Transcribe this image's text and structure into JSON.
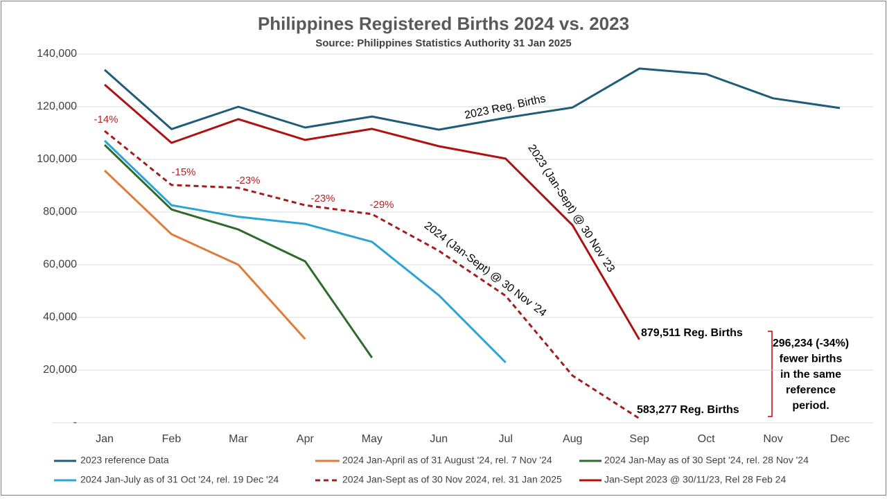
{
  "chart_data": {
    "type": "line",
    "title": "Philippines Registered Births 2024 vs. 2023",
    "subtitle": "Source: Philippines Statistics Authority 31 Jan 2025",
    "categories": [
      "Jan",
      "Feb",
      "Mar",
      "Apr",
      "May",
      "Jun",
      "Jul",
      "Aug",
      "Sep",
      "Oct",
      "Nov",
      "Dec"
    ],
    "ylim": [
      0,
      140000
    ],
    "yticks": [
      {
        "value": 0,
        "label": "-"
      },
      {
        "value": 20000,
        "label": "20,000"
      },
      {
        "value": 40000,
        "label": "40,000"
      },
      {
        "value": 60000,
        "label": "60,000"
      },
      {
        "value": 80000,
        "label": "80,000"
      },
      {
        "value": 100000,
        "label": "100,000"
      },
      {
        "value": 120000,
        "label": "120,000"
      },
      {
        "value": 140000,
        "label": "140,000"
      }
    ],
    "grid": true,
    "series": [
      {
        "name": "2023 reference Data",
        "color": "#1f5c7a",
        "dashed": false,
        "values": [
          134000,
          111500,
          120000,
          112100,
          116300,
          111300,
          115800,
          119700,
          134500,
          132400,
          123200,
          119500
        ]
      },
      {
        "name": "2024 Jan-April as of 31 August '24, rel. 7 Nov '24",
        "color": "#e07b39",
        "dashed": false,
        "values": [
          95800,
          71600,
          60000,
          31800,
          null,
          null,
          null,
          null,
          null,
          null,
          null,
          null
        ]
      },
      {
        "name": "2024 Jan-May as of 30 Sept '24, rel. 28 Nov '24",
        "color": "#2e6b2a",
        "dashed": false,
        "values": [
          105500,
          81000,
          73400,
          61300,
          24700,
          null,
          null,
          null,
          null,
          null,
          null,
          null
        ]
      },
      {
        "name": "2024 Jan-July as of 31 Oct '24, rel. 19 Dec '24",
        "color": "#2aa3d6",
        "dashed": false,
        "values": [
          107100,
          82600,
          78200,
          75500,
          68700,
          48400,
          22900,
          null,
          null,
          null,
          null,
          null
        ]
      },
      {
        "name": "2024 Jan-Sept as of 30 Nov 2024, rel. 31 Jan 2025",
        "color": "#a51c1c",
        "dashed": true,
        "values": [
          110800,
          90300,
          89200,
          82600,
          79200,
          65300,
          48200,
          17900,
          1600,
          null,
          null,
          null
        ]
      },
      {
        "name": "Jan-Sept 2023 @ 30/11/23, Rel 28 Feb 24",
        "color": "#b01010",
        "dashed": false,
        "values": [
          128400,
          106300,
          115300,
          107400,
          111600,
          105000,
          100300,
          75000,
          31600,
          null,
          null,
          null
        ]
      }
    ],
    "annotations": [
      "-14%",
      "-15%",
      "-23%",
      "-23%",
      "-29%",
      "2023 Reg. Births",
      "2023 (Jan-Sept) @ 30 Nov '23",
      "2024 (Jan-Sept) @ 30 Nov '24",
      "879,511 Reg. Births",
      "583,277 Reg. Births"
    ],
    "note": [
      "296,234 (-34%)",
      "fewer births",
      "in the same",
      "reference",
      "period."
    ]
  }
}
